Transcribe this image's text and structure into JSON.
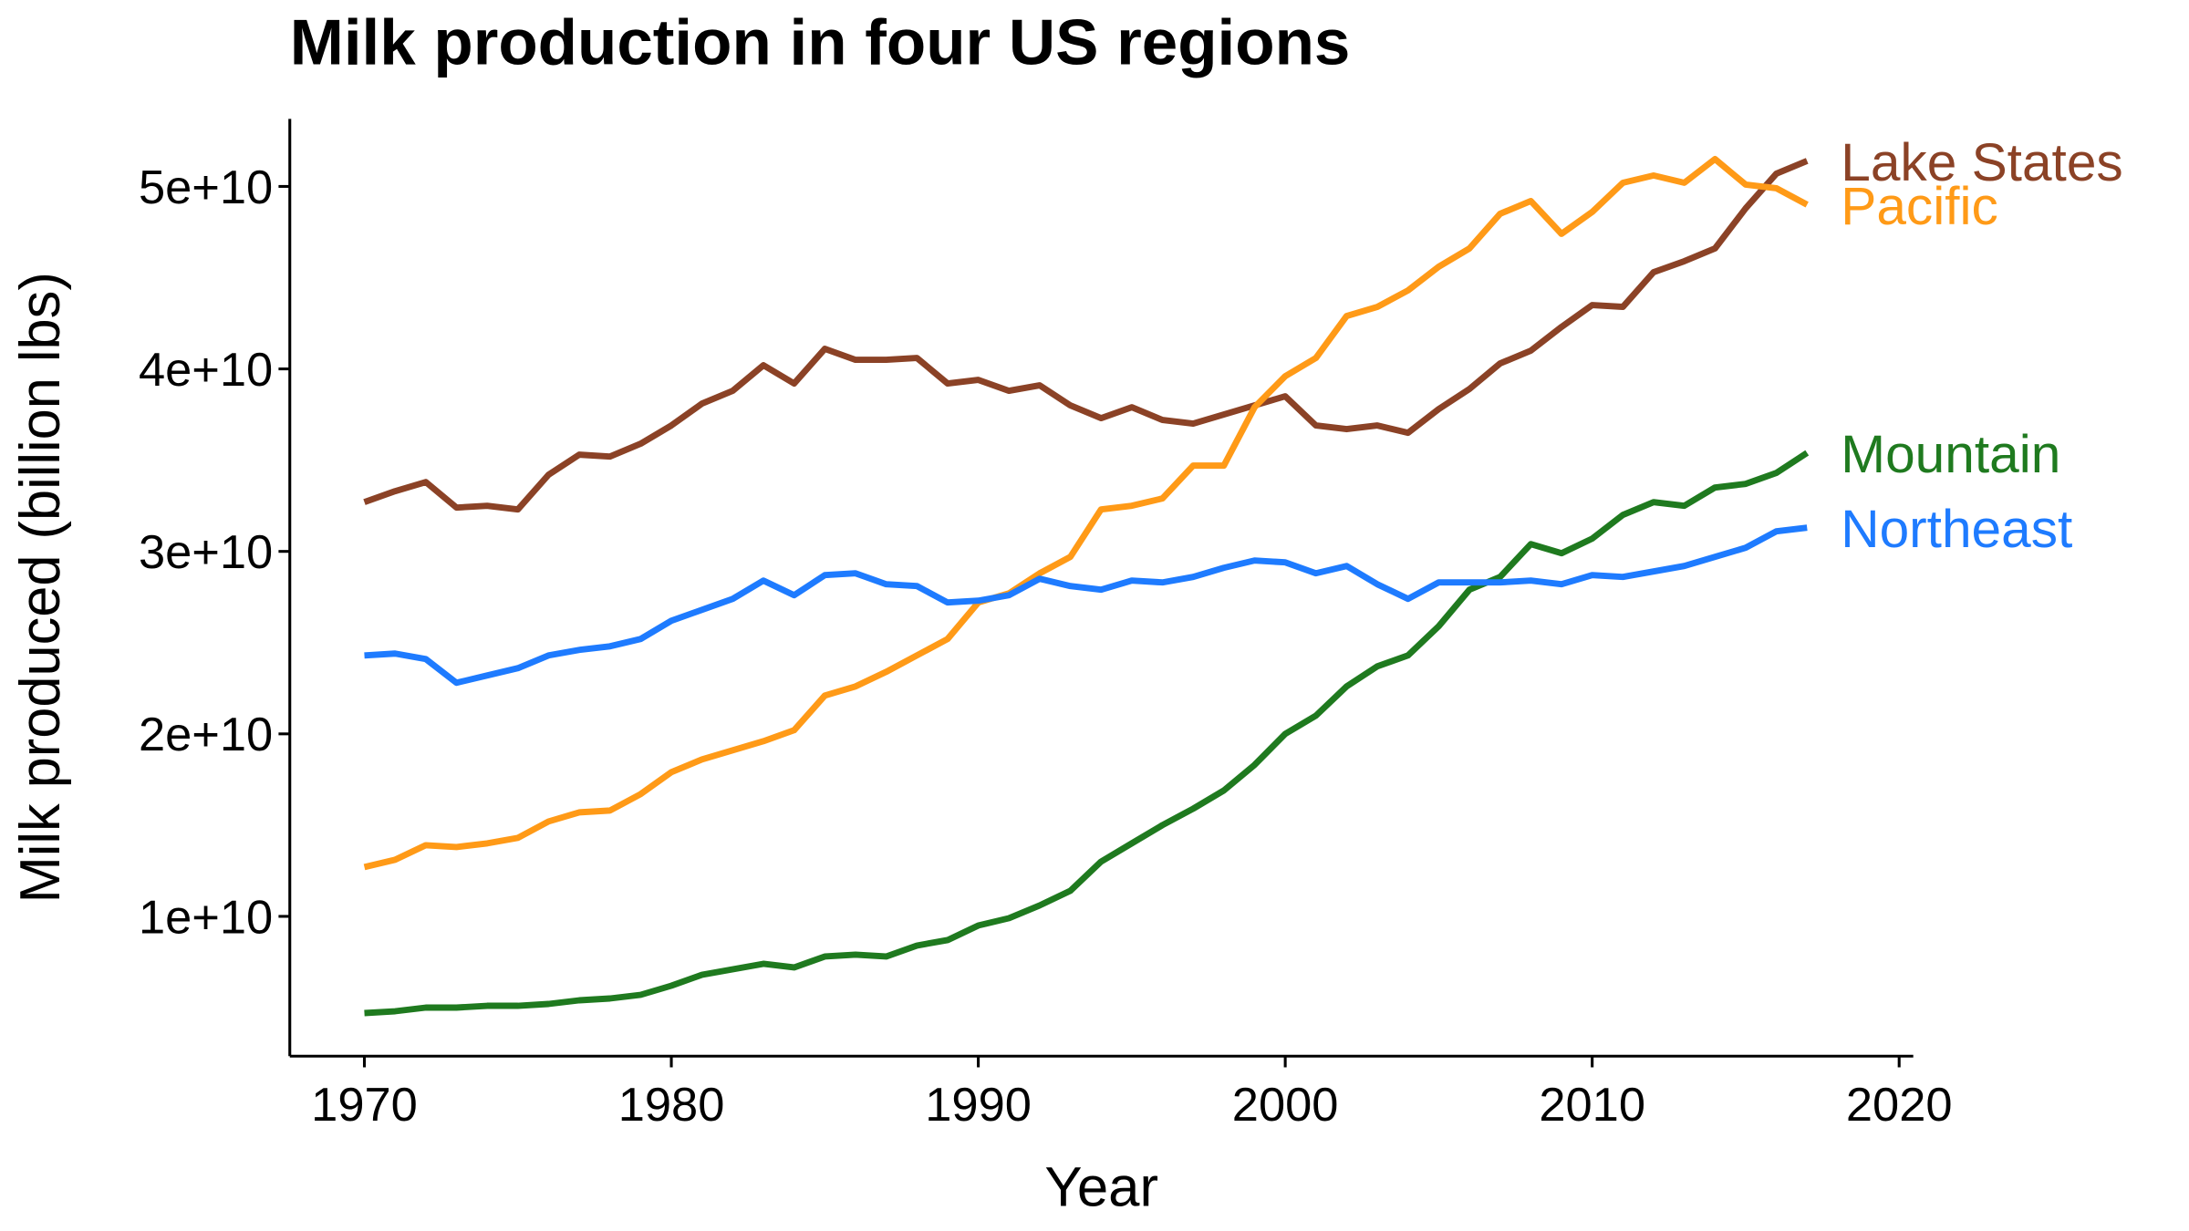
{
  "chart_data": {
    "type": "line",
    "title": "Milk production in four US regions",
    "x_label": "Year",
    "y_label": "Milk produced (billion lbs)",
    "x": [
      1970,
      1971,
      1972,
      1973,
      1974,
      1975,
      1976,
      1977,
      1978,
      1979,
      1980,
      1981,
      1982,
      1983,
      1984,
      1985,
      1986,
      1987,
      1988,
      1989,
      1990,
      1991,
      1992,
      1993,
      1994,
      1995,
      1996,
      1997,
      1998,
      1999,
      2000,
      2001,
      2002,
      2003,
      2004,
      2005,
      2006,
      2007,
      2008,
      2009,
      2010,
      2011,
      2012,
      2013,
      2014,
      2015,
      2016,
      2017
    ],
    "series": [
      {
        "name": "Lake States",
        "color": "#8b4226",
        "values": [
          32700000000.0,
          33300000000.0,
          33800000000.0,
          32400000000.0,
          32500000000.0,
          32300000000.0,
          34200000000.0,
          35300000000.0,
          35200000000.0,
          35900000000.0,
          36900000000.0,
          38100000000.0,
          38800000000.0,
          40200000000.0,
          39200000000.0,
          41100000000.0,
          40500000000.0,
          40500000000.0,
          40600000000.0,
          39200000000.0,
          39400000000.0,
          38800000000.0,
          39100000000.0,
          38000000000.0,
          37300000000.0,
          37900000000.0,
          37200000000.0,
          37000000000.0,
          37500000000.0,
          38000000000.0,
          38500000000.0,
          36900000000.0,
          36700000000.0,
          36900000000.0,
          36500000000.0,
          37800000000.0,
          38900000000.0,
          40300000000.0,
          41000000000.0,
          42300000000.0,
          43500000000.0,
          43400000000.0,
          45300000000.0,
          45900000000.0,
          46600000000.0,
          48800000000.0,
          50700000000.0,
          51400000000.0
        ]
      },
      {
        "name": "Pacific",
        "color": "#ff9a17",
        "values": [
          12700000000.0,
          13100000000.0,
          13900000000.0,
          13800000000.0,
          14000000000.0,
          14300000000.0,
          15200000000.0,
          15700000000.0,
          15800000000.0,
          16700000000.0,
          17900000000.0,
          18600000000.0,
          19100000000.0,
          19600000000.0,
          20200000000.0,
          22100000000.0,
          22600000000.0,
          23400000000.0,
          24300000000.0,
          25200000000.0,
          27200000000.0,
          27700000000.0,
          28800000000.0,
          29700000000.0,
          32300000000.0,
          32500000000.0,
          32900000000.0,
          34700000000.0,
          34700000000.0,
          37900000000.0,
          39600000000.0,
          40600000000.0,
          42900000000.0,
          43400000000.0,
          44300000000.0,
          45600000000.0,
          46600000000.0,
          48500000000.0,
          49200000000.0,
          47400000000.0,
          48600000000.0,
          50200000000.0,
          50600000000.0,
          50200000000.0,
          51500000000.0,
          50100000000.0,
          49900000000.0,
          49000000000.0
        ]
      },
      {
        "name": "Mountain",
        "color": "#1f7a1f",
        "values": [
          4700000000.0,
          4800000000.0,
          5000000000.0,
          5000000000.0,
          5100000000.0,
          5100000000.0,
          5200000000.0,
          5400000000.0,
          5500000000.0,
          5700000000.0,
          6200000000.0,
          6800000000.0,
          7100000000.0,
          7400000000.0,
          7200000000.0,
          7800000000.0,
          7900000000.0,
          7800000000.0,
          8400000000.0,
          8700000000.0,
          9500000000.0,
          9900000000.0,
          10600000000.0,
          11400000000.0,
          13000000000.0,
          14000000000.0,
          15000000000.0,
          15900000000.0,
          16900000000.0,
          18300000000.0,
          20000000000.0,
          21000000000.0,
          22600000000.0,
          23700000000.0,
          24300000000.0,
          25900000000.0,
          27900000000.0,
          28600000000.0,
          30400000000.0,
          29900000000.0,
          30700000000.0,
          32000000000.0,
          32700000000.0,
          32500000000.0,
          33500000000.0,
          33700000000.0,
          34300000000.0,
          35400000000.0
        ]
      },
      {
        "name": "Northeast",
        "color": "#1e7bff",
        "values": [
          24300000000.0,
          24400000000.0,
          24100000000.0,
          22800000000.0,
          23200000000.0,
          23600000000.0,
          24300000000.0,
          24600000000.0,
          24800000000.0,
          25200000000.0,
          26200000000.0,
          26800000000.0,
          27400000000.0,
          28400000000.0,
          27600000000.0,
          28700000000.0,
          28800000000.0,
          28200000000.0,
          28100000000.0,
          27200000000.0,
          27300000000.0,
          27600000000.0,
          28500000000.0,
          28100000000.0,
          27900000000.0,
          28400000000.0,
          28300000000.0,
          28600000000.0,
          29100000000.0,
          29500000000.0,
          29400000000.0,
          28800000000.0,
          29200000000.0,
          28200000000.0,
          27400000000.0,
          28300000000.0,
          28300000000.0,
          28300000000.0,
          28400000000.0,
          28200000000.0,
          28700000000.0,
          28600000000.0,
          28900000000.0,
          29200000000.0,
          29700000000.0,
          30200000000.0,
          31100000000.0,
          31300000000.0
        ]
      }
    ],
    "xlim": [
      1967.57,
      2020.46
    ],
    "xticks": [
      1970,
      1980,
      1990,
      2000,
      2010,
      2020
    ],
    "ylim": [
      2340000000.0,
      53700000000.0
    ],
    "yticks": [
      {
        "value": 10000000000.0,
        "label": "1e+10"
      },
      {
        "value": 20000000000.0,
        "label": "2e+10"
      },
      {
        "value": 30000000000.0,
        "label": "3e+10"
      },
      {
        "value": 40000000000.0,
        "label": "4e+10"
      },
      {
        "value": 50000000000.0,
        "label": "5e+10"
      }
    ],
    "grid": false
  }
}
